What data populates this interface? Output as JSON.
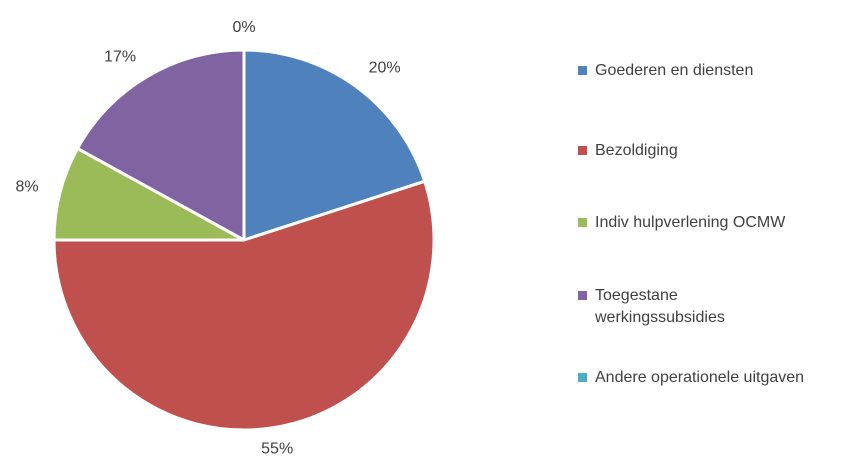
{
  "chart_data": {
    "type": "pie",
    "categories": [
      "Goederen en diensten",
      "Bezoldiging",
      "Indiv hulpverlening OCMW",
      "Toegestane werkingssubsidies",
      "Andere operationele uitgaven"
    ],
    "values": [
      20,
      55,
      8,
      17,
      0
    ],
    "value_labels": [
      "20%",
      "55%",
      "8%",
      "17%",
      "0%"
    ],
    "colors": [
      "#4f81bd",
      "#c0504d",
      "#9bbb59",
      "#8064a2",
      "#4bacc6"
    ],
    "legend": "right"
  }
}
